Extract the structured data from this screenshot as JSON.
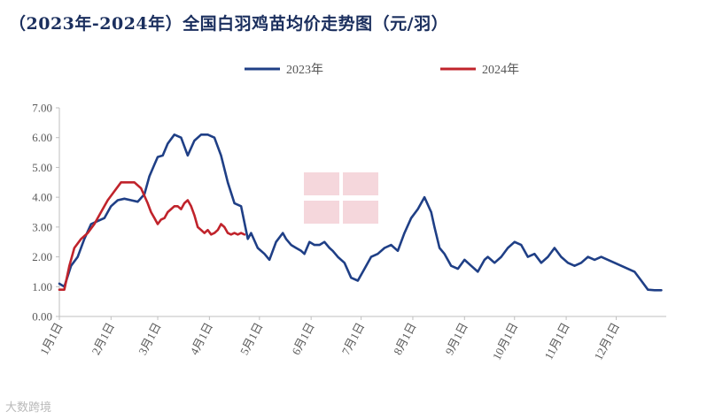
{
  "chart_data": {
    "type": "line",
    "title": "（2023年-2024年）全国白羽鸡苗均价走势图（元/羽）",
    "x_categories": [
      "1月1日",
      "2月1日",
      "3月1日",
      "4月1日",
      "5月1日",
      "6月1日",
      "7月1日",
      "8月1日",
      "9月1日",
      "10月1日",
      "11月1日",
      "12月1日"
    ],
    "ylim": [
      0,
      7
    ],
    "yticks": [
      "0.00",
      "1.00",
      "2.00",
      "3.00",
      "4.00",
      "5.00",
      "6.00",
      "7.00"
    ],
    "legend_position": "top",
    "grid": false,
    "series": [
      {
        "name": "2023年",
        "color": "#1f3f86",
        "x": [
          1,
          4,
          8,
          12,
          16,
          20,
          24,
          28,
          32,
          36,
          40,
          44,
          48,
          52,
          55,
          58,
          60,
          63,
          66,
          70,
          74,
          78,
          82,
          86,
          90,
          94,
          98,
          102,
          106,
          110,
          114,
          116,
          120,
          124,
          127,
          131,
          135,
          137,
          140,
          143,
          146,
          148,
          151,
          154,
          157,
          160,
          163,
          165,
          168,
          172,
          176,
          180,
          184,
          188,
          192,
          196,
          200,
          204,
          208,
          212,
          216,
          220,
          224,
          226,
          229,
          232,
          236,
          240,
          244,
          248,
          252,
          256,
          258,
          262,
          266,
          270,
          274,
          278,
          282,
          286,
          290,
          294,
          298,
          302,
          306,
          310,
          314,
          318,
          322,
          326,
          330,
          334,
          338,
          342,
          346,
          350,
          354,
          358,
          362
        ],
        "values": [
          1.1,
          1.0,
          1.7,
          2.0,
          2.6,
          3.1,
          3.2,
          3.3,
          3.7,
          3.9,
          3.95,
          3.9,
          3.85,
          4.1,
          4.7,
          5.1,
          5.35,
          5.4,
          5.8,
          6.1,
          6.0,
          5.4,
          5.9,
          6.1,
          6.1,
          6.0,
          5.4,
          4.5,
          3.8,
          3.7,
          2.6,
          2.8,
          2.3,
          2.1,
          1.9,
          2.5,
          2.8,
          2.6,
          2.4,
          2.3,
          2.2,
          2.1,
          2.5,
          2.4,
          2.4,
          2.5,
          2.3,
          2.2,
          2.0,
          1.8,
          1.3,
          1.2,
          1.6,
          2.0,
          2.1,
          2.3,
          2.4,
          2.2,
          2.8,
          3.3,
          3.6,
          4.0,
          3.5,
          3.0,
          2.3,
          2.1,
          1.7,
          1.6,
          1.9,
          1.7,
          1.5,
          1.9,
          2.0,
          1.8,
          2.0,
          2.3,
          2.5,
          2.4,
          2.0,
          2.1,
          1.8,
          2.0,
          2.3,
          2.0,
          1.8,
          1.7,
          1.8,
          2.0,
          1.9,
          2.0,
          1.9,
          1.8,
          1.7,
          1.6,
          1.5,
          1.2,
          0.9,
          0.88,
          0.88
        ]
      },
      {
        "name": "2024年",
        "color": "#c0232b",
        "x": [
          1,
          4,
          7,
          10,
          14,
          18,
          22,
          26,
          30,
          34,
          38,
          42,
          46,
          50,
          54,
          56,
          58,
          60,
          62,
          64,
          66,
          68,
          70,
          72,
          74,
          76,
          78,
          80,
          82,
          84,
          86,
          88,
          90,
          92,
          94,
          96,
          98,
          100,
          102,
          104,
          106,
          108,
          110,
          112
        ],
        "values": [
          0.9,
          0.9,
          1.7,
          2.3,
          2.6,
          2.8,
          3.1,
          3.5,
          3.9,
          4.2,
          4.5,
          4.5,
          4.5,
          4.3,
          3.8,
          3.5,
          3.3,
          3.1,
          3.25,
          3.3,
          3.5,
          3.6,
          3.7,
          3.7,
          3.6,
          3.8,
          3.9,
          3.7,
          3.4,
          3.0,
          2.9,
          2.8,
          2.9,
          2.75,
          2.8,
          2.9,
          3.1,
          3.0,
          2.8,
          2.75,
          2.8,
          2.75,
          2.8,
          2.75
        ]
      }
    ]
  },
  "watermark_brand": "大数跨境"
}
